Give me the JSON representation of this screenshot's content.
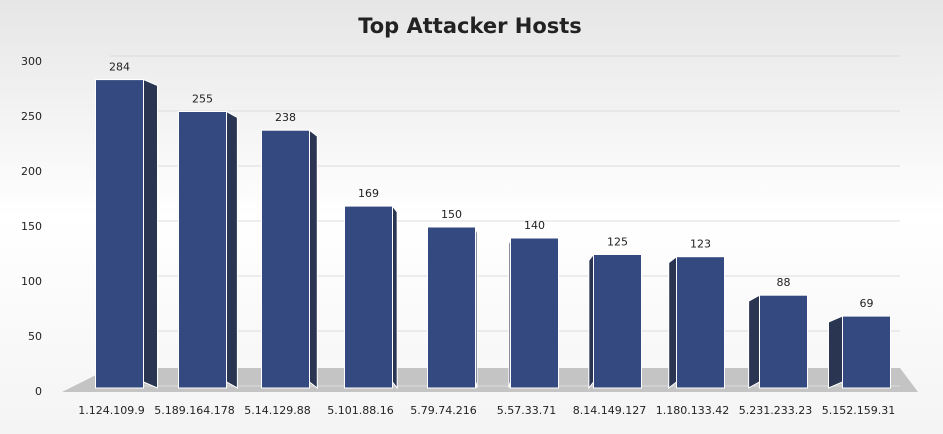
{
  "chart_data": {
    "type": "bar",
    "title": "Top Attacker Hosts",
    "categories": [
      "1.124.109.9",
      "5.189.164.178",
      "5.14.129.88",
      "5.101.88.16",
      "5.79.74.216",
      "5.57.33.71",
      "8.14.149.127",
      "1.180.133.42",
      "5.231.233.23",
      "5.152.159.31"
    ],
    "values": [
      284,
      255,
      238,
      169,
      150,
      140,
      125,
      123,
      88,
      69
    ],
    "color": "#34497f",
    "ylim": [
      0,
      300
    ],
    "yticks": [
      0,
      50,
      100,
      150,
      200,
      250,
      300
    ],
    "grid": true
  }
}
